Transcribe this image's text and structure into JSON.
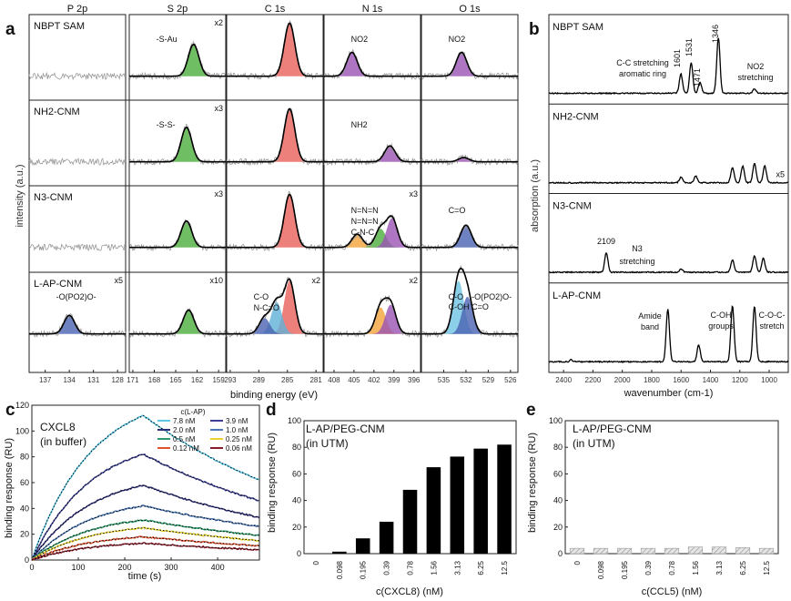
{
  "chart_data": [
    {
      "panel": "a",
      "type": "line",
      "title": "",
      "xlabel": "binding energy (eV)",
      "ylabel": "intensity (a.u.)",
      "columns": [
        {
          "name": "P 2p",
          "xlim": [
            127,
            139
          ],
          "xticks": [
            "137",
            "134",
            "131",
            "128"
          ]
        },
        {
          "name": "S 2p",
          "xlim": [
            158,
            171.5
          ],
          "xticks": [
            "171",
            "168",
            "165",
            "162",
            "159"
          ]
        },
        {
          "name": "C 1s",
          "xlim": [
            280,
            293.5
          ],
          "xticks": [
            "293",
            "289",
            "285",
            "281"
          ]
        },
        {
          "name": "N 1s",
          "xlim": [
            395,
            409.5
          ],
          "xticks": [
            "408",
            "405",
            "402",
            "399",
            "396"
          ]
        },
        {
          "name": "O 1s",
          "xlim": [
            525,
            538
          ],
          "xticks": [
            "535",
            "532",
            "529",
            "526"
          ]
        }
      ],
      "rows": [
        {
          "name": "NBPT SAM",
          "cells": [
            {
              "multiplier": "",
              "labels": [],
              "peaks": []
            },
            {
              "multiplier": "x2",
              "labels": [
                "-S-Au"
              ],
              "peaks": [
                {
                  "center": 162.5,
                  "height": 0.6,
                  "color": "#4cae3c"
                }
              ]
            },
            {
              "multiplier": "",
              "labels": [],
              "peaks": [
                {
                  "center": 284.7,
                  "height": 1.0,
                  "color": "#e8605a"
                }
              ]
            },
            {
              "multiplier": "",
              "labels": [
                "NO2"
              ],
              "peaks": [
                {
                  "center": 405.3,
                  "height": 0.45,
                  "color": "#9a52b4"
                }
              ]
            },
            {
              "multiplier": "",
              "labels": [
                "NO2"
              ],
              "peaks": [
                {
                  "center": 532.6,
                  "height": 0.45,
                  "color": "#9a52b4"
                }
              ]
            }
          ]
        },
        {
          "name": "NH2-CNM",
          "cells": [
            {
              "multiplier": "",
              "labels": [],
              "peaks": []
            },
            {
              "multiplier": "x3",
              "labels": [
                "-S-S-"
              ],
              "peaks": [
                {
                  "center": 163.5,
                  "height": 0.65,
                  "color": "#4cae3c"
                }
              ]
            },
            {
              "multiplier": "",
              "labels": [],
              "peaks": [
                {
                  "center": 284.7,
                  "height": 1.0,
                  "color": "#e8605a"
                }
              ]
            },
            {
              "multiplier": "",
              "labels": [
                "NH2"
              ],
              "peaks": [
                {
                  "center": 399.6,
                  "height": 0.3,
                  "color": "#9a52b4"
                }
              ]
            },
            {
              "multiplier": "",
              "labels": [],
              "peaks": [
                {
                  "center": 532.3,
                  "height": 0.08,
                  "color": "#9a52b4"
                }
              ]
            }
          ]
        },
        {
          "name": "N3-CNM",
          "cells": [
            {
              "multiplier": "",
              "labels": [],
              "peaks": []
            },
            {
              "multiplier": "x3",
              "labels": [],
              "peaks": [
                {
                  "center": 163.5,
                  "height": 0.5,
                  "color": "#4cae3c"
                }
              ]
            },
            {
              "multiplier": "",
              "labels": [],
              "peaks": [
                {
                  "center": 284.7,
                  "height": 1.0,
                  "color": "#e8605a"
                }
              ]
            },
            {
              "multiplier": "x3",
              "labels": [
                "N=N=N",
                "N=N=N",
                "C-N-C"
              ],
              "peaks": [
                {
                  "center": 404.5,
                  "height": 0.25,
                  "color": "#f2a33a"
                },
                {
                  "center": 401.0,
                  "height": 0.35,
                  "color": "#4cae3c"
                },
                {
                  "center": 399.3,
                  "height": 0.55,
                  "color": "#9a52b4"
                }
              ]
            },
            {
              "multiplier": "",
              "labels": [
                "C=O"
              ],
              "peaks": [
                {
                  "center": 532.0,
                  "height": 0.42,
                  "color": "#4a62b0"
                }
              ]
            }
          ]
        },
        {
          "name": "L-AP-CNM",
          "cells": [
            {
              "multiplier": "x5",
              "labels": [
                "-O(PO2)O-"
              ],
              "peaks": [
                {
                  "center": 134.0,
                  "height": 0.35,
                  "color": "#4a62b0"
                }
              ]
            },
            {
              "multiplier": "x10",
              "labels": [],
              "peaks": [
                {
                  "center": 163.2,
                  "height": 0.45,
                  "color": "#4cae3c"
                }
              ]
            },
            {
              "multiplier": "x2",
              "labels": [
                "C-O",
                "N-C=O"
              ],
              "peaks": [
                {
                  "center": 284.7,
                  "height": 1.0,
                  "color": "#e8605a"
                },
                {
                  "center": 286.5,
                  "height": 0.6,
                  "color": "#5fb0d8"
                },
                {
                  "center": 288.2,
                  "height": 0.3,
                  "color": "#4a62b0"
                }
              ]
            },
            {
              "multiplier": "x2",
              "labels": [],
              "peaks": [
                {
                  "center": 401.0,
                  "height": 0.5,
                  "color": "#f2a33a"
                },
                {
                  "center": 399.5,
                  "height": 0.55,
                  "color": "#9a52b4"
                }
              ]
            },
            {
              "multiplier": "",
              "labels": [
                "C-O",
                "C-OH",
                "-O(PO2)O-",
                "C=O"
              ],
              "peaks": [
                {
                  "center": 533.0,
                  "height": 1.0,
                  "color": "#6fc3e4"
                },
                {
                  "center": 531.8,
                  "height": 0.7,
                  "color": "#4a62b0"
                }
              ]
            }
          ]
        }
      ]
    },
    {
      "panel": "b",
      "type": "line",
      "xlabel": "wavenumber (cm-1)",
      "ylabel": "absorption (a.u.)",
      "xlim": [
        2500,
        870
      ],
      "xticks": [
        "2400",
        "2200",
        "2000",
        "1800",
        "1600",
        "1400",
        "1200",
        "1000"
      ],
      "series": [
        {
          "name": "NBPT SAM",
          "peaks": [
            [
              1601,
              0.35
            ],
            [
              1531,
              0.55
            ],
            [
              1471,
              0.2
            ],
            [
              1346,
              1.0
            ],
            [
              1100,
              0.08
            ]
          ],
          "annotations": [
            "C-C stretching",
            "aromatic ring",
            "1601",
            "1531",
            "1471",
            "1346",
            "NO2",
            "stretching"
          ]
        },
        {
          "name": "NH2-CNM",
          "multiplier": "x5",
          "peaks": [
            [
              1600,
              0.1
            ],
            [
              1500,
              0.12
            ],
            [
              1250,
              0.28
            ],
            [
              1180,
              0.3
            ],
            [
              1100,
              0.35
            ],
            [
              1030,
              0.3
            ]
          ],
          "annotations": []
        },
        {
          "name": "N3-CNM",
          "peaks": [
            [
              2109,
              0.35
            ],
            [
              1600,
              0.06
            ],
            [
              1250,
              0.22
            ],
            [
              1100,
              0.3
            ],
            [
              1040,
              0.25
            ]
          ],
          "annotations": [
            "2109",
            "N3",
            "stretching"
          ]
        },
        {
          "name": "L-AP-CNM",
          "peaks": [
            [
              1690,
              0.95
            ],
            [
              1480,
              0.3
            ],
            [
              1250,
              1.0
            ],
            [
              1100,
              1.0
            ]
          ],
          "annotations": [
            "Amide",
            "band",
            "C-OH",
            "groups",
            "C-O-C-",
            "stretch"
          ]
        }
      ]
    },
    {
      "panel": "c",
      "type": "line",
      "title": "CXCL8",
      "subtitle": "(in buffer)",
      "xlabel": "time (s)",
      "ylabel": "binding response (RU)",
      "xlim": [
        0,
        490
      ],
      "ylim": [
        0,
        120
      ],
      "xticks": [
        0,
        100,
        200,
        300,
        400
      ],
      "yticks": [
        0,
        20,
        40,
        60,
        80,
        100,
        120
      ],
      "legend_title": "c(L-AP)",
      "legend_position": "top-right",
      "series": [
        {
          "name": "7.8 nM",
          "color": "#5bc8e6",
          "peak": 112,
          "end": 62
        },
        {
          "name": "3.9 nM",
          "color": "#3b3f95",
          "peak": 82,
          "end": 46
        },
        {
          "name": "2.0 nM",
          "color": "#2c2f78",
          "peak": 58,
          "end": 33
        },
        {
          "name": "1.0 nM",
          "color": "#4b78b6",
          "peak": 42,
          "end": 26
        },
        {
          "name": "0.5 nM",
          "color": "#2a9b6a",
          "peak": 31,
          "end": 19
        },
        {
          "name": "0.25 nM",
          "color": "#e8d431",
          "peak": 25,
          "end": 15
        },
        {
          "name": "0.12 nM",
          "color": "#e05332",
          "peak": 18,
          "end": 11
        },
        {
          "name": "0.06 nM",
          "color": "#8b1c2c",
          "peak": 13,
          "end": 8
        }
      ],
      "fit_line": "dotted black"
    },
    {
      "panel": "d",
      "type": "bar",
      "title": "L-AP/PEG-CNM",
      "subtitle": "(in UTM)",
      "xlabel": "c(CXCL8) (nM)",
      "ylabel": "binding response (RU)",
      "ylim": [
        0,
        100
      ],
      "yticks": [
        0,
        20,
        40,
        60,
        80,
        100
      ],
      "categories": [
        "0",
        "0.098",
        "0.195",
        "0.39",
        "0.78",
        "1.56",
        "3.13",
        "6.25",
        "12.5"
      ],
      "values": [
        0,
        1.5,
        11.5,
        24,
        48,
        65,
        73,
        79,
        82
      ],
      "bar_color": "#000000"
    },
    {
      "panel": "e",
      "type": "bar",
      "title": "L-AP/PEG-CNM",
      "subtitle": "(in UTM)",
      "xlabel": "c(CCL5) (nM)",
      "ylabel": "binding response (RU)",
      "ylim": [
        0,
        100
      ],
      "yticks": [
        0,
        20,
        40,
        60,
        80,
        100
      ],
      "categories": [
        "0",
        "0.098",
        "0.195",
        "0.39",
        "0.78",
        "1.56",
        "3.13",
        "6.25",
        "12.5"
      ],
      "values": [
        4,
        4,
        4,
        4,
        4,
        5,
        5,
        4.5,
        4
      ],
      "bar_color": "#bdbdbd",
      "bar_pattern": "hatched"
    }
  ],
  "panel_letters": [
    "a",
    "b",
    "c",
    "d",
    "e"
  ]
}
